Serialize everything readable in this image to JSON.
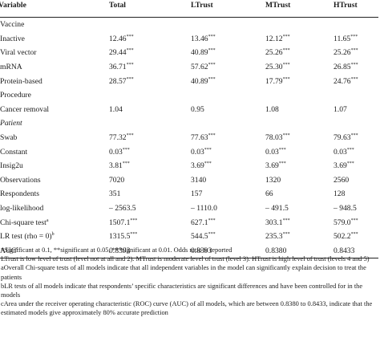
{
  "headers": [
    "Variable",
    "Total",
    "LTrust",
    "MTrust",
    "HTrust"
  ],
  "rows": [
    {
      "label": "Vaccine",
      "type": "section"
    },
    {
      "label": "Inactive",
      "values": [
        "12.46",
        "13.46",
        "12.12",
        "11.65"
      ],
      "sig": [
        "***",
        "***",
        "***",
        "***"
      ]
    },
    {
      "label": "Viral vector",
      "values": [
        "29.44",
        "40.89",
        "25.26",
        "25.26"
      ],
      "sig": [
        "***",
        "***",
        "***",
        "***"
      ]
    },
    {
      "label": "mRNA",
      "values": [
        "36.71",
        "57.62",
        "25.30",
        "26.85"
      ],
      "sig": [
        "***",
        "***",
        "***",
        "***"
      ]
    },
    {
      "label": "Protein-based",
      "values": [
        "28.57",
        "40.89",
        "17.79",
        "24.76"
      ],
      "sig": [
        "***",
        "***",
        "***",
        "***"
      ]
    },
    {
      "label": "Procedure",
      "type": "section"
    },
    {
      "label": "Cancer removal",
      "values": [
        "1.04",
        "0.95",
        "1.08",
        "1.07"
      ],
      "sig": [
        "",
        "",
        "",
        ""
      ]
    },
    {
      "label": "Patient",
      "type": "section-italic"
    },
    {
      "label": "Swab",
      "values": [
        "77.32",
        "77.63",
        "78.03",
        "79.63"
      ],
      "sig": [
        "***",
        "***",
        "***",
        "***"
      ]
    },
    {
      "label": "Constant",
      "values": [
        "0.03",
        "0.03",
        "0.03",
        "0.03"
      ],
      "sig": [
        "***",
        "***",
        "***",
        "***"
      ]
    },
    {
      "label": "Insig2u",
      "values": [
        "3.81",
        "3.69",
        "3.69",
        "3.69"
      ],
      "sig": [
        "***",
        "***",
        "***",
        "***"
      ]
    },
    {
      "label": "Observations",
      "values": [
        "7020",
        "3140",
        "1320",
        "2560"
      ],
      "sig": [
        "",
        "",
        "",
        ""
      ]
    },
    {
      "label": "Respondents",
      "values": [
        "351",
        "157",
        "66",
        "128"
      ],
      "sig": [
        "",
        "",
        "",
        ""
      ]
    },
    {
      "label": "log-likelihood",
      "values": [
        "– 2563.5",
        "– 1110.0",
        "– 491.5",
        "– 948.5"
      ],
      "sig": [
        "",
        "",
        "",
        ""
      ]
    },
    {
      "label": "Chi-square test",
      "label_sup": "a",
      "values": [
        "1507.1",
        "627.1",
        "303.1",
        "579.0"
      ],
      "sig": [
        "***",
        "***",
        "***",
        "***"
      ]
    },
    {
      "label": "LR test (rho = 0)",
      "label_sup": "b",
      "values": [
        "1315.5",
        "544.5",
        "235.3",
        "502.2"
      ],
      "sig": [
        "***",
        "***",
        "***",
        "***"
      ]
    },
    {
      "label": "AUC",
      "label_sup": "c",
      "values": [
        "0.8393",
        "0.8393",
        "0.8380",
        "0.8433"
      ],
      "sig": [
        "",
        "",
        "",
        ""
      ]
    }
  ],
  "notes": [
    "*Significant at 0.1, **significant at 0.05, ***significant at 0.01. Odds ratio is reported",
    "LTrust is low level of trust (level not at all and 2). MTrust is moderate level of trust (level 3). HTrust is high level of trust (levels 4 and 5)",
    "aOverall Chi-square tests of all models indicate that all independent variables in the model can significantly explain decision to treat the patients",
    "bLR tests of all models indicate that respondents’ specific characteristics are significant differences and have been controlled for in the models",
    "cArea under the receiver operating characteristic (ROC) curve (AUC) of all models, which are between 0.8380 to 0.8433, indicate that the estimated models give approximately 80% accurate prediction"
  ]
}
